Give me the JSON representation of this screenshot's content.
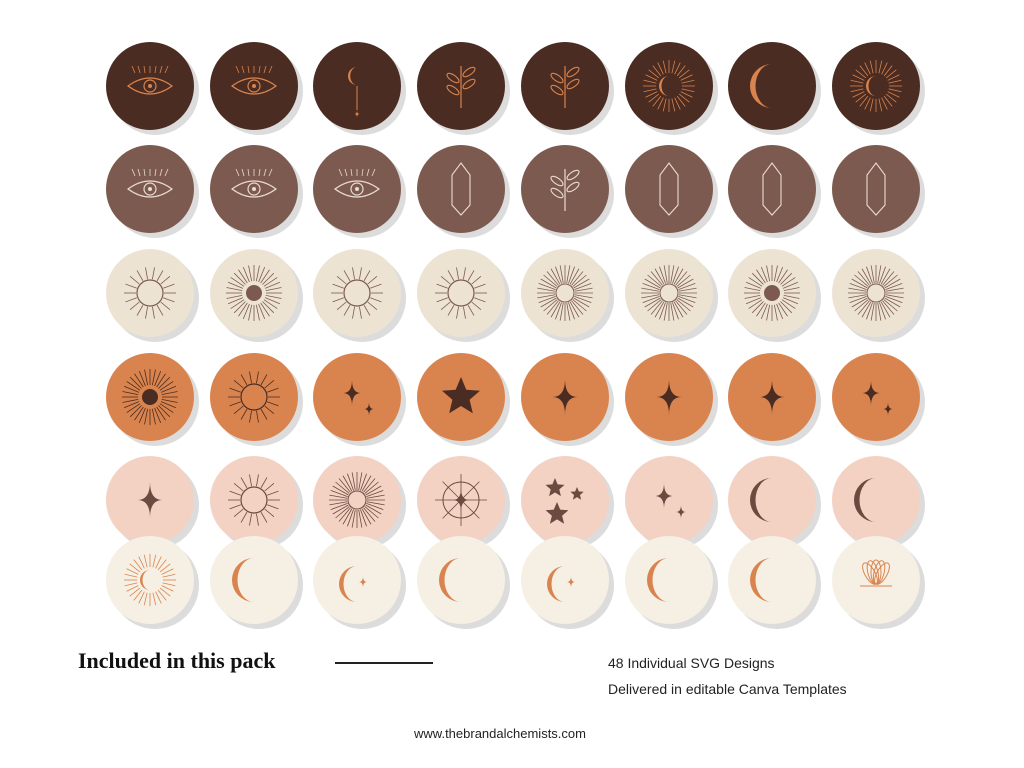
{
  "pack_heading": "Included in this pack",
  "features": [
    "48 Individual SVG Designs",
    "Delivered in editable Canva Templates"
  ],
  "footer_url": "www.thebrandalchemists.com"
}
